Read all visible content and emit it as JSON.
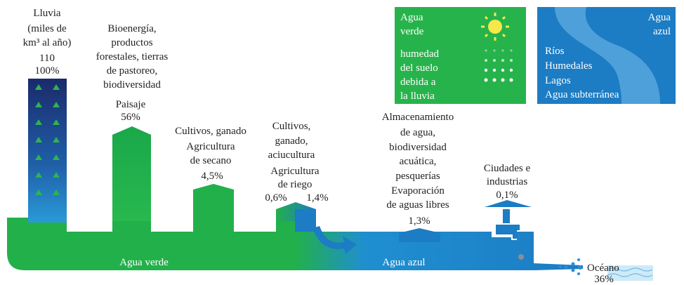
{
  "rain": {
    "lines": [
      "Lluvia",
      "(miles de",
      "km³ al año)"
    ],
    "amount": "110",
    "share": "100%"
  },
  "landscape": {
    "description": [
      "Bioenergía,",
      "productos",
      "forestales, tierras",
      "de pastoreo,",
      "biodiversidad"
    ],
    "label": "Paisaje",
    "share": "56%"
  },
  "rainfed": {
    "description": [
      "Cultivos, ganado"
    ],
    "label": [
      "Agricultura",
      "de secano"
    ],
    "share": "4,5%"
  },
  "irrigated": {
    "description": [
      "Cultivos,",
      "ganado,",
      "aciucultura"
    ],
    "label": [
      "Agricultura",
      "de riego"
    ],
    "green_share": "0,6%",
    "blue_share": "1,4%"
  },
  "storage": {
    "description": [
      "Almacenamiento",
      "de agua,",
      "biodiversidad",
      "acuática,",
      "pesquerías"
    ],
    "label": [
      "Evaporación",
      "de aguas libres"
    ],
    "share": "1,3%"
  },
  "cities": {
    "description": [
      "Ciudades e",
      "industrias"
    ],
    "share": "0,1%"
  },
  "ocean": {
    "label": "Océano",
    "share": "36%"
  },
  "flows": {
    "green": "Agua verde",
    "blue": "Agua azul"
  },
  "legend_green": {
    "title": [
      "Agua",
      "verde"
    ],
    "description": [
      "humedad",
      "del suelo",
      "debida a",
      "la lluvia"
    ]
  },
  "legend_blue": {
    "title": [
      "Agua",
      "azul"
    ],
    "items": [
      "Ríos",
      "Humedales",
      "Lagos",
      "Agua subterránea"
    ]
  }
}
